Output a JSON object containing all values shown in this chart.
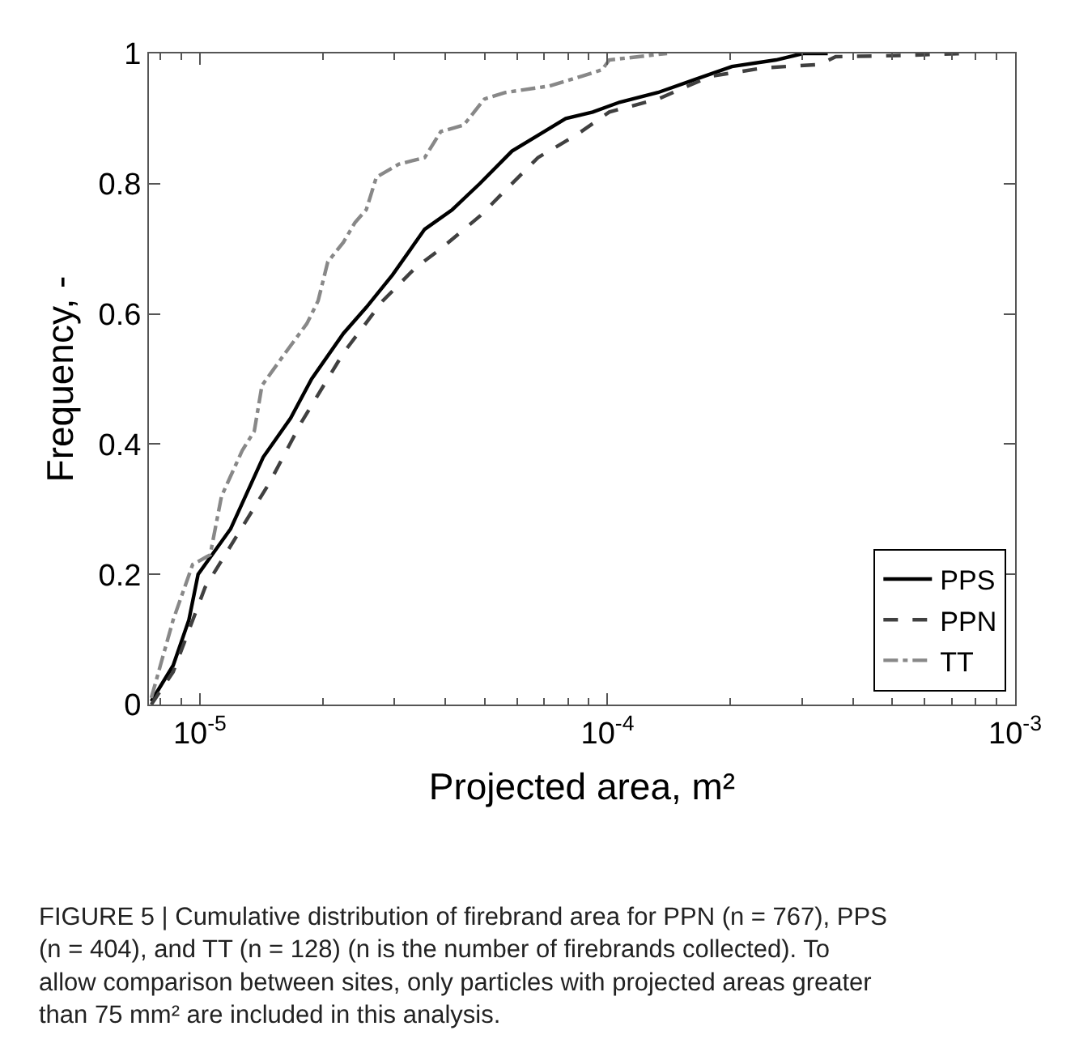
{
  "chart_data": {
    "type": "line",
    "xlabel": "Projected area, m²",
    "ylabel": "Frequency, -",
    "log": "x",
    "xlim": [
      7.5e-06,
      0.001
    ],
    "ylim": [
      0,
      1
    ],
    "xticks": [
      {
        "value": 1e-05,
        "label": "10$^{-5}$"
      },
      {
        "value": 0.0001,
        "label": "10$^{-4}$"
      },
      {
        "value": 0.001,
        "label": "10$^{-3}$"
      }
    ],
    "yticks": [
      0,
      0.2,
      0.4,
      0.6,
      0.8,
      1
    ],
    "legend": "bottom right",
    "marker": "none",
    "series": [
      {
        "name": "PPS",
        "color": "#000000",
        "line_style": "solid",
        "x": [
          7.6e-06,
          8.6e-06,
          9.4e-06,
          9.9e-06,
          1.19e-05,
          1.43e-05,
          1.67e-05,
          1.88e-05,
          2.25e-05,
          2.56e-05,
          2.97e-05,
          3.56e-05,
          4.16e-05,
          4.86e-05,
          5.83e-05,
          7e-05,
          7.9e-05,
          9.2e-05,
          0.000107,
          0.000133,
          0.000164,
          0.000202,
          0.000259,
          0.000302,
          0.000347
        ],
        "values": [
          0.005,
          0.06,
          0.13,
          0.2,
          0.27,
          0.38,
          0.44,
          0.5,
          0.57,
          0.61,
          0.66,
          0.73,
          0.76,
          0.8,
          0.85,
          0.88,
          0.9,
          0.91,
          0.925,
          0.94,
          0.96,
          0.98,
          0.99,
          1.0,
          1.0
        ]
      },
      {
        "name": "PPN",
        "color": "#404040",
        "line_style": "dashed",
        "x": [
          7.6e-06,
          8.6e-06,
          1.03e-05,
          1.48e-05,
          1.78e-05,
          2.25e-05,
          2.81e-05,
          3.37e-05,
          3.9e-05,
          4.86e-05,
          5.62e-05,
          6.75e-05,
          8.4e-05,
          0.000101,
          0.000133,
          0.000179,
          0.000243,
          0.000331,
          0.000363,
          0.000537,
          0.00075
        ],
        "values": [
          0.0,
          0.05,
          0.18,
          0.34,
          0.435,
          0.54,
          0.62,
          0.67,
          0.7,
          0.75,
          0.79,
          0.84,
          0.875,
          0.91,
          0.93,
          0.965,
          0.978,
          0.983,
          0.995,
          0.997,
          1.0
        ]
      },
      {
        "name": "TT",
        "color": "#888888",
        "line_style": "dashdot",
        "x": [
          7.6e-06,
          8e-06,
          8.6e-06,
          9.6e-06,
          1.06e-05,
          1.13e-05,
          1.27e-05,
          1.36e-05,
          1.42e-05,
          1.62e-05,
          1.83e-05,
          1.95e-05,
          2.06e-05,
          2.25e-05,
          2.4e-05,
          2.56e-05,
          2.71e-05,
          3.08e-05,
          3.56e-05,
          3.9e-05,
          4.44e-05,
          4.99e-05,
          5.62e-05,
          7.2e-05,
          8.65e-05,
          9.7e-05,
          0.000101,
          0.00014
        ],
        "values": [
          0.01,
          0.06,
          0.13,
          0.215,
          0.23,
          0.32,
          0.39,
          0.42,
          0.49,
          0.54,
          0.585,
          0.62,
          0.68,
          0.71,
          0.74,
          0.76,
          0.81,
          0.83,
          0.84,
          0.88,
          0.89,
          0.93,
          0.94,
          0.95,
          0.965,
          0.975,
          0.99,
          1.0
        ]
      }
    ],
    "annotations": [
      "FIGURE 5 | Cumulative distribution of firebrand area for PPN (n = 767), PPS (n = 404), and TT (n = 128) (n is the number of firebrands collected). To allow comparison between sites, only particles with projected areas greater than 75 mm² are included in this analysis."
    ]
  }
}
